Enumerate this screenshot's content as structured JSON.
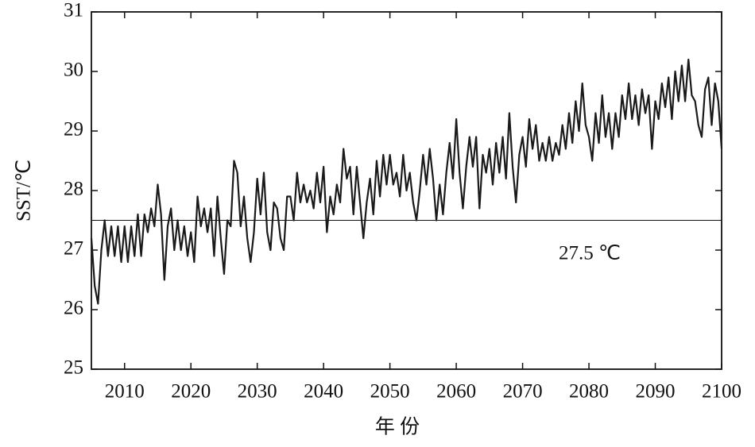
{
  "chart_data": {
    "type": "line",
    "xlabel": "年 份",
    "ylabel": "SST/℃",
    "xlim": [
      2005,
      2100
    ],
    "ylim": [
      25,
      31
    ],
    "xticks": [
      2010,
      2020,
      2030,
      2040,
      2050,
      2060,
      2070,
      2080,
      2090,
      2100
    ],
    "yticks": [
      25,
      26,
      27,
      28,
      29,
      30,
      31
    ],
    "grid": false,
    "color": "#1a1a1a",
    "reference_line": {
      "value": 27.5,
      "label": "27.5 ℃"
    },
    "x": [
      2005,
      2005.5,
      2006,
      2006.5,
      2007,
      2007.5,
      2008,
      2008.5,
      2009,
      2009.5,
      2010,
      2010.5,
      2011,
      2011.5,
      2012,
      2012.5,
      2013,
      2013.5,
      2014,
      2014.5,
      2015,
      2015.5,
      2016,
      2016.5,
      2017,
      2017.5,
      2018,
      2018.5,
      2019,
      2019.5,
      2020,
      2020.5,
      2021,
      2021.5,
      2022,
      2022.5,
      2023,
      2023.5,
      2024,
      2024.5,
      2025,
      2025.5,
      2026,
      2026.5,
      2027,
      2027.5,
      2028,
      2028.5,
      2029,
      2029.5,
      2030,
      2030.5,
      2031,
      2031.5,
      2032,
      2032.5,
      2033,
      2033.5,
      2034,
      2034.5,
      2035,
      2035.5,
      2036,
      2036.5,
      2037,
      2037.5,
      2038,
      2038.5,
      2039,
      2039.5,
      2040,
      2040.5,
      2041,
      2041.5,
      2042,
      2042.5,
      2043,
      2043.5,
      2044,
      2044.5,
      2045,
      2045.5,
      2046,
      2046.5,
      2047,
      2047.5,
      2048,
      2048.5,
      2049,
      2049.5,
      2050,
      2050.5,
      2051,
      2051.5,
      2052,
      2052.5,
      2053,
      2053.5,
      2054,
      2054.5,
      2055,
      2055.5,
      2056,
      2056.5,
      2057,
      2057.5,
      2058,
      2058.5,
      2059,
      2059.5,
      2060,
      2060.5,
      2061,
      2061.5,
      2062,
      2062.5,
      2063,
      2063.5,
      2064,
      2064.5,
      2065,
      2065.5,
      2066,
      2066.5,
      2067,
      2067.5,
      2068,
      2068.5,
      2069,
      2069.5,
      2070,
      2070.5,
      2071,
      2071.5,
      2072,
      2072.5,
      2073,
      2073.5,
      2074,
      2074.5,
      2075,
      2075.5,
      2076,
      2076.5,
      2077,
      2077.5,
      2078,
      2078.5,
      2079,
      2079.5,
      2080,
      2080.5,
      2081,
      2081.5,
      2082,
      2082.5,
      2083,
      2083.5,
      2084,
      2084.5,
      2085,
      2085.5,
      2086,
      2086.5,
      2087,
      2087.5,
      2088,
      2088.5,
      2089,
      2089.5,
      2090,
      2090.5,
      2091,
      2091.5,
      2092,
      2092.5,
      2093,
      2093.5,
      2094,
      2094.5,
      2095,
      2095.5,
      2096,
      2096.5,
      2097,
      2097.5,
      2098,
      2098.5,
      2099,
      2099.5,
      2100
    ],
    "values": [
      27.2,
      26.4,
      26.1,
      27.0,
      27.5,
      26.9,
      27.4,
      26.9,
      27.4,
      26.8,
      27.4,
      26.8,
      27.4,
      26.9,
      27.6,
      26.9,
      27.6,
      27.3,
      27.7,
      27.4,
      28.1,
      27.6,
      26.5,
      27.4,
      27.7,
      27.0,
      27.5,
      27.0,
      27.4,
      26.9,
      27.3,
      26.8,
      27.9,
      27.4,
      27.7,
      27.3,
      27.7,
      26.9,
      27.9,
      27.2,
      26.6,
      27.5,
      27.4,
      28.5,
      28.3,
      27.4,
      27.9,
      27.2,
      26.8,
      27.3,
      28.2,
      27.6,
      28.3,
      27.3,
      27.0,
      27.8,
      27.7,
      27.2,
      27.0,
      27.9,
      27.9,
      27.5,
      28.3,
      27.8,
      28.1,
      27.8,
      28.0,
      27.7,
      28.3,
      27.8,
      28.4,
      27.3,
      27.9,
      27.6,
      28.1,
      27.8,
      28.7,
      28.2,
      28.4,
      27.6,
      28.4,
      27.8,
      27.2,
      27.8,
      28.2,
      27.6,
      28.5,
      27.9,
      28.6,
      28.1,
      28.6,
      28.1,
      28.3,
      27.9,
      28.6,
      28.0,
      28.3,
      27.8,
      27.5,
      28.0,
      28.6,
      28.1,
      28.7,
      28.2,
      27.5,
      28.1,
      27.6,
      28.3,
      28.8,
      28.2,
      29.2,
      28.3,
      27.7,
      28.4,
      28.9,
      28.4,
      28.9,
      27.7,
      28.6,
      28.3,
      28.7,
      28.1,
      28.8,
      28.3,
      28.9,
      28.2,
      29.3,
      28.4,
      27.8,
      28.6,
      28.9,
      28.4,
      29.2,
      28.7,
      29.1,
      28.5,
      28.8,
      28.5,
      28.9,
      28.5,
      28.8,
      28.6,
      29.1,
      28.7,
      29.3,
      28.8,
      29.5,
      29.0,
      29.8,
      29.1,
      28.9,
      28.5,
      29.3,
      28.8,
      29.6,
      28.9,
      29.3,
      28.7,
      29.3,
      28.9,
      29.6,
      29.2,
      29.8,
      29.2,
      29.6,
      29.1,
      29.7,
      29.3,
      29.6,
      28.7,
      29.5,
      29.2,
      29.8,
      29.4,
      29.9,
      29.2,
      30.0,
      29.5,
      30.1,
      29.5,
      30.2,
      29.6,
      29.5,
      29.1,
      28.9,
      29.7,
      29.9,
      29.1,
      29.8,
      29.5,
      28.7
    ]
  }
}
